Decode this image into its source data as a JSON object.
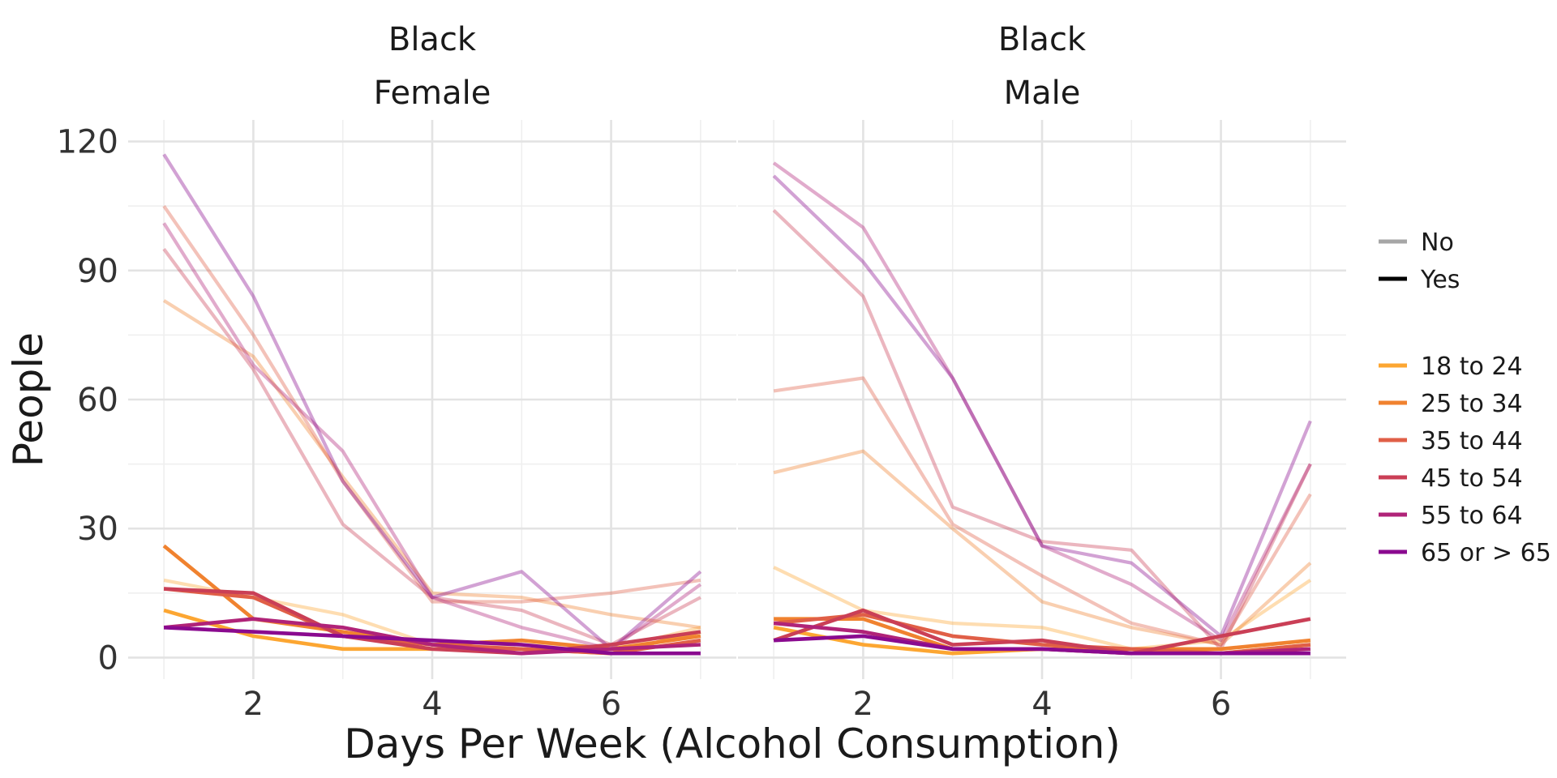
{
  "chart_data": {
    "type": "line",
    "xlabel": "Days Per Week (Alcohol Consumption)",
    "ylabel": "People",
    "x": [
      1,
      2,
      3,
      4,
      5,
      6,
      7
    ],
    "x_ticks": [
      2,
      4,
      6
    ],
    "y_ticks": [
      0,
      30,
      60,
      90,
      120
    ],
    "xlim": [
      0.6,
      7.4
    ],
    "ylim": [
      -5,
      125
    ],
    "grid": true,
    "legend_position": "right",
    "legend": {
      "linetype": [
        {
          "label": "No",
          "color": "#a6a6a6"
        },
        {
          "label": "Yes",
          "color": "#000000"
        }
      ],
      "age": [
        {
          "label": "18 to 24",
          "color": "#FCA632"
        },
        {
          "label": "25 to 34",
          "color": "#F0822F"
        },
        {
          "label": "35 to 44",
          "color": "#E05F47"
        },
        {
          "label": "45 to 54",
          "color": "#CA3F56"
        },
        {
          "label": "55 to 64",
          "color": "#B02378"
        },
        {
          "label": "65 or > 65",
          "color": "#8A0A8F"
        }
      ]
    },
    "panels": [
      {
        "strip": [
          "Black",
          "Female"
        ],
        "series": [
          {
            "age": "18 to 24",
            "group": "No",
            "values": [
              18,
              14,
              10,
              3,
              3,
              2,
              7
            ]
          },
          {
            "age": "25 to 34",
            "group": "No",
            "values": [
              83,
              70,
              42,
              15,
              14,
              10,
              7
            ]
          },
          {
            "age": "35 to 44",
            "group": "No",
            "values": [
              105,
              75,
              41,
              13,
              13,
              15,
              18
            ]
          },
          {
            "age": "45 to 54",
            "group": "No",
            "values": [
              95,
              67,
              31,
              14,
              11,
              3,
              14
            ]
          },
          {
            "age": "55 to 64",
            "group": "No",
            "values": [
              101,
              68,
              48,
              14,
              7,
              2,
              17
            ]
          },
          {
            "age": "65 or > 65",
            "group": "No",
            "values": [
              117,
              84,
              41,
              14,
              20,
              2,
              20
            ]
          },
          {
            "age": "18 to 24",
            "group": "Yes",
            "values": [
              11,
              5,
              2,
              2,
              2,
              1,
              6
            ]
          },
          {
            "age": "25 to 34",
            "group": "Yes",
            "values": [
              26,
              9,
              6,
              3,
              4,
              2,
              5
            ]
          },
          {
            "age": "35 to 44",
            "group": "Yes",
            "values": [
              16,
              14,
              5,
              3,
              2,
              1,
              4
            ]
          },
          {
            "age": "45 to 54",
            "group": "Yes",
            "values": [
              16,
              15,
              5,
              2,
              1,
              3,
              6
            ]
          },
          {
            "age": "55 to 64",
            "group": "Yes",
            "values": [
              7,
              9,
              7,
              3,
              1,
              2,
              3
            ]
          },
          {
            "age": "65 or > 65",
            "group": "Yes",
            "values": [
              7,
              6,
              5,
              4,
              3,
              1,
              1
            ]
          }
        ]
      },
      {
        "strip": [
          "Black",
          "Male"
        ],
        "series": [
          {
            "age": "18 to 24",
            "group": "No",
            "values": [
              21,
              11,
              8,
              7,
              2,
              4,
              18
            ]
          },
          {
            "age": "25 to 34",
            "group": "No",
            "values": [
              43,
              48,
              30,
              13,
              7,
              3,
              22
            ]
          },
          {
            "age": "35 to 44",
            "group": "No",
            "values": [
              62,
              65,
              31,
              19,
              8,
              3,
              38
            ]
          },
          {
            "age": "45 to 54",
            "group": "No",
            "values": [
              104,
              84,
              35,
              27,
              25,
              2,
              45
            ]
          },
          {
            "age": "55 to 64",
            "group": "No",
            "values": [
              115,
              100,
              65,
              26,
              17,
              4,
              45
            ]
          },
          {
            "age": "65 or > 65",
            "group": "No",
            "values": [
              112,
              92,
              65,
              26,
              22,
              5,
              55
            ]
          },
          {
            "age": "18 to 24",
            "group": "Yes",
            "values": [
              7,
              3,
              1,
              2,
              1,
              1,
              3
            ]
          },
          {
            "age": "25 to 34",
            "group": "Yes",
            "values": [
              9,
              9,
              2,
              2,
              2,
              2,
              4
            ]
          },
          {
            "age": "35 to 44",
            "group": "Yes",
            "values": [
              8,
              10,
              5,
              3,
              2,
              1,
              3
            ]
          },
          {
            "age": "45 to 54",
            "group": "Yes",
            "values": [
              4,
              11,
              3,
              4,
              1,
              5,
              9
            ]
          },
          {
            "age": "55 to 64",
            "group": "Yes",
            "values": [
              8,
              6,
              2,
              2,
              1,
              1,
              2
            ]
          },
          {
            "age": "65 or > 65",
            "group": "Yes",
            "values": [
              4,
              5,
              2,
              2,
              1,
              1,
              1
            ]
          }
        ]
      }
    ]
  }
}
